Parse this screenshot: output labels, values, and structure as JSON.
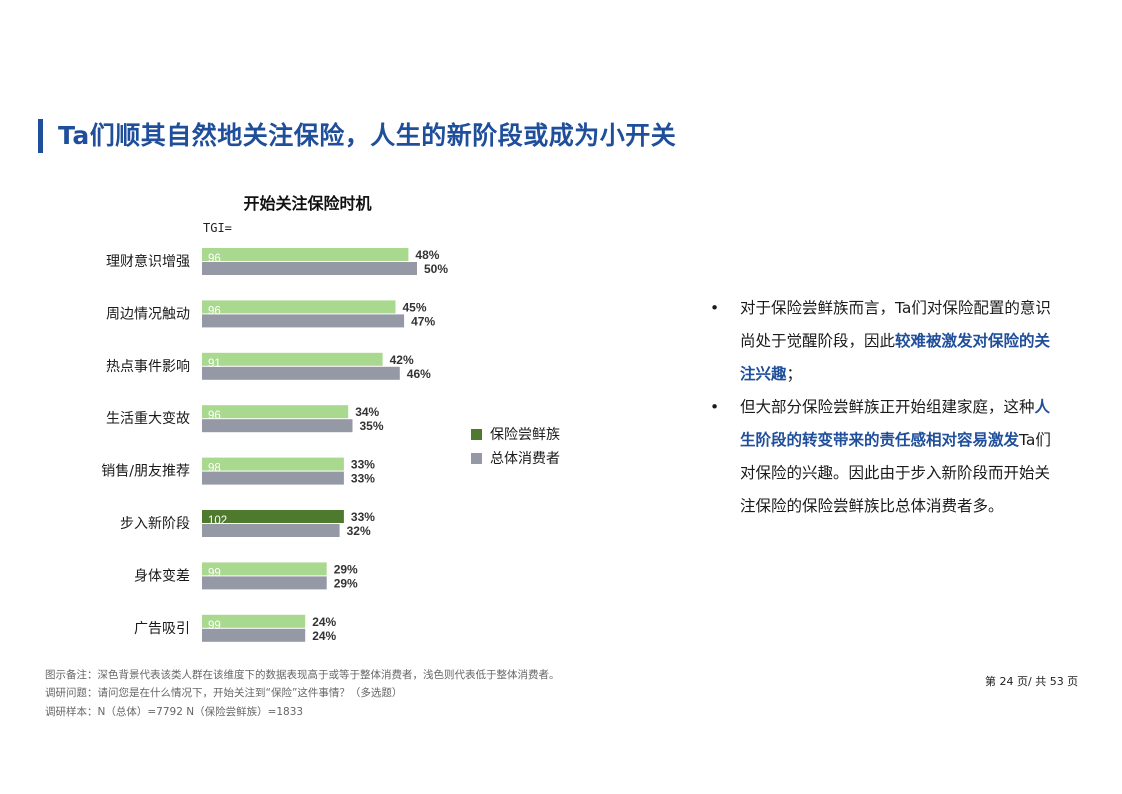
{
  "header": {
    "title": "Ta们顺其自然地关注保险，人生的新阶段或成为小开关"
  },
  "chart_data": {
    "type": "bar",
    "title": "开始关注保险时机",
    "tgi_label": "TGI=",
    "categories": [
      "理财意识增强",
      "周边情况触动",
      "热点事件影响",
      "生活重大变故",
      "销售/朋友推荐",
      "步入新阶段",
      "身体变差",
      "广告吸引"
    ],
    "tgi": [
      "96",
      "96",
      "91",
      "96",
      "98",
      "102",
      "99",
      "99"
    ],
    "series": [
      {
        "name": "保险尝鲜族",
        "values": [
          48,
          45,
          42,
          34,
          33,
          33,
          29,
          24
        ],
        "labels": [
          "48%",
          "45%",
          "42%",
          "34%",
          "33%",
          "33%",
          "29%",
          "24%"
        ]
      },
      {
        "name": "总体消费者",
        "values": [
          50,
          47,
          46,
          35,
          33,
          32,
          29,
          24
        ],
        "labels": [
          "50%",
          "47%",
          "46%",
          "35%",
          "33%",
          "32%",
          "29%",
          "24%"
        ]
      }
    ],
    "highlight_index": 5,
    "colors": {
      "series1_light": "#a9d88f",
      "series1_dark": "#4e7a2e",
      "series2": "#9599a5"
    },
    "xlim": [
      0,
      100
    ],
    "legend_position": "right"
  },
  "bullets": [
    {
      "dot": "•",
      "parts": [
        {
          "text": "对于保险尝鲜族而言，Ta们对保险配置的意识尚处于觉醒阶段，因此",
          "hl": false
        },
        {
          "text": "较难被激发对保险的关注兴趣",
          "hl": true
        },
        {
          "text": "；",
          "hl": false
        }
      ]
    },
    {
      "dot": "•",
      "parts": [
        {
          "text": "但大部分保险尝鲜族正开始组建家庭，这种",
          "hl": false
        },
        {
          "text": "人生阶段的转变带来的责任感相对容易激发",
          "hl": true
        },
        {
          "text": "Ta们对保险的兴趣。因此由于步入新阶段而开始关注保险的保险尝鲜族比总体消费者多。",
          "hl": false
        }
      ]
    }
  ],
  "footnotes": {
    "note": "图示备注：深色背景代表该类人群在该维度下的数据表现高于或等于整体消费者，浅色则代表低于整体消费者。",
    "question": "调研问题：请问您是在什么情况下，开始关注到“保险”这件事情？（多选题）",
    "sample": "调研样本：N（总体）=7792     N（保险尝鲜族）=1833"
  },
  "page_number": "第 24 页/ 共 53 页"
}
